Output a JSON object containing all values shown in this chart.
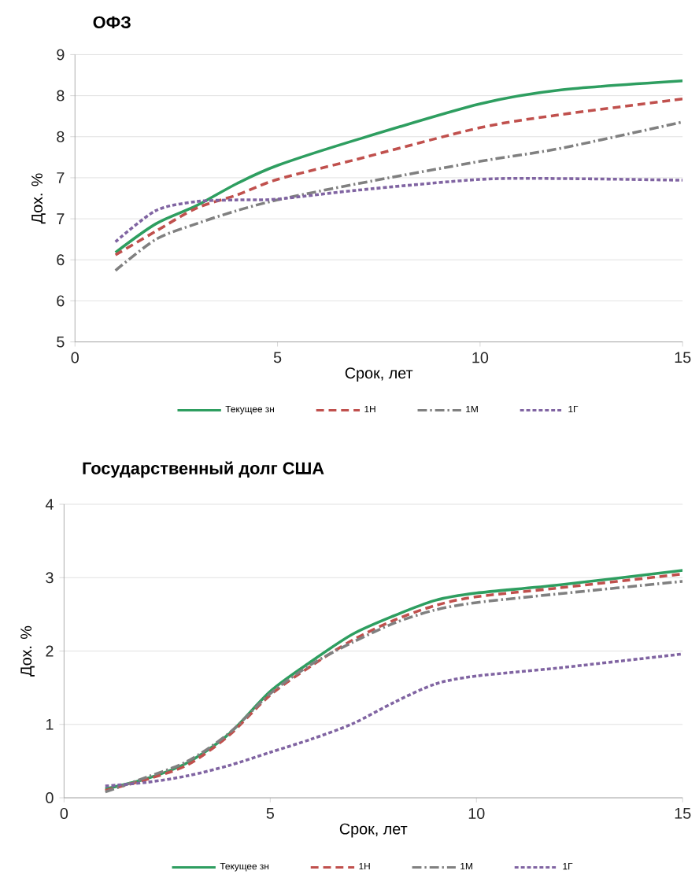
{
  "chart_data": [
    {
      "type": "line",
      "title": "ОФЗ",
      "xlabel": "Срок, лет",
      "ylabel": "Дох. %",
      "xlim": [
        0,
        15
      ],
      "xticks": [
        0,
        5,
        10,
        15
      ],
      "ylim": [
        5,
        8.5
      ],
      "yticks": [
        5,
        {
          "value": 5.5,
          "label": "6"
        },
        6,
        {
          "value": 6.5,
          "label": "7"
        },
        7,
        {
          "value": 7.5,
          "label": "8"
        },
        8,
        {
          "value": 8.5,
          "label": "9"
        }
      ],
      "grid": "y",
      "legend": "bottom",
      "series": [
        {
          "name": "Текущее зн",
          "color": "#2e9e60",
          "line_style": "solid",
          "x": [
            1,
            2,
            3,
            4,
            5,
            7,
            10,
            12,
            15
          ],
          "values": [
            6.09,
            6.44,
            6.66,
            6.93,
            7.15,
            7.47,
            7.9,
            8.07,
            8.18
          ]
        },
        {
          "name": "1Н",
          "color": "#c0504d",
          "line_style": "dashed",
          "x": [
            1,
            2,
            3,
            4,
            5,
            7,
            10,
            12,
            15
          ],
          "values": [
            6.06,
            6.35,
            6.63,
            6.79,
            6.98,
            7.23,
            7.61,
            7.77,
            7.96
          ]
        },
        {
          "name": "1М",
          "color": "#808080",
          "line_style": "dashdot",
          "x": [
            1,
            2,
            3,
            4,
            5,
            7,
            10,
            12,
            15
          ],
          "values": [
            5.87,
            6.25,
            6.44,
            6.6,
            6.73,
            6.93,
            7.2,
            7.36,
            7.68
          ]
        },
        {
          "name": "1Г",
          "color": "#8064a2",
          "line_style": "dotted",
          "x": [
            1,
            2,
            3,
            4,
            5,
            7,
            10,
            12,
            15
          ],
          "values": [
            6.22,
            6.6,
            6.71,
            6.73,
            6.74,
            6.85,
            6.98,
            6.99,
            6.97
          ]
        }
      ]
    },
    {
      "type": "line",
      "title": "Государственный  долг США",
      "xlabel": "Срок, лет",
      "ylabel": "Дох. %",
      "xlim": [
        0,
        15
      ],
      "xticks": [
        0,
        5,
        10,
        15
      ],
      "ylim": [
        0,
        4
      ],
      "yticks": [
        0,
        1,
        2,
        3,
        4
      ],
      "grid": "y",
      "legend": "bottom",
      "series": [
        {
          "name": "Текущее зн",
          "color": "#2e9e60",
          "line_style": "solid",
          "x": [
            1,
            2,
            3,
            4,
            5,
            6,
            7,
            8,
            9,
            10,
            12,
            15
          ],
          "values": [
            0.12,
            0.26,
            0.48,
            0.87,
            1.45,
            1.86,
            2.23,
            2.48,
            2.69,
            2.79,
            2.9,
            3.1
          ]
        },
        {
          "name": "1Н",
          "color": "#c0504d",
          "line_style": "dashed",
          "x": [
            1,
            2,
            3,
            4,
            5,
            6,
            7,
            8,
            9,
            10,
            12,
            15
          ],
          "values": [
            0.1,
            0.25,
            0.45,
            0.85,
            1.4,
            1.8,
            2.15,
            2.42,
            2.62,
            2.74,
            2.86,
            3.05
          ]
        },
        {
          "name": "1М",
          "color": "#808080",
          "line_style": "dashdot",
          "x": [
            1,
            2,
            3,
            4,
            5,
            6,
            7,
            8,
            9,
            10,
            12,
            15
          ],
          "values": [
            0.08,
            0.28,
            0.5,
            0.88,
            1.42,
            1.82,
            2.12,
            2.38,
            2.56,
            2.66,
            2.78,
            2.95
          ]
        },
        {
          "name": "1Г",
          "color": "#8064a2",
          "line_style": "dotted",
          "x": [
            1,
            2,
            3,
            4,
            5,
            6,
            7,
            8,
            9,
            10,
            12,
            15
          ],
          "values": [
            0.16,
            0.21,
            0.3,
            0.44,
            0.62,
            0.8,
            1.01,
            1.3,
            1.55,
            1.66,
            1.77,
            1.96
          ]
        }
      ]
    }
  ]
}
